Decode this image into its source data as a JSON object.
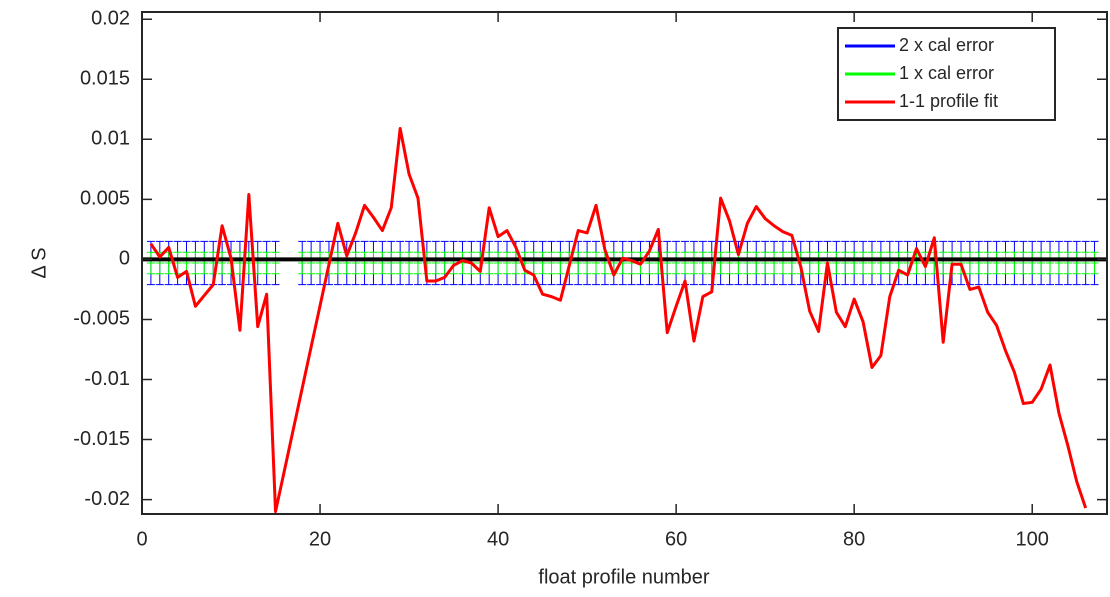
{
  "chart_data": {
    "type": "line",
    "xlabel": "float profile number",
    "ylabel": "Δ S",
    "xlim": [
      0,
      108.4
    ],
    "ylim": [
      -0.0212,
      0.0206
    ],
    "xticks": [
      0,
      20,
      40,
      60,
      80,
      100
    ],
    "yticks": [
      0.02,
      0.015,
      0.01,
      0.005,
      0,
      -0.005,
      -0.01,
      -0.015,
      -0.02
    ],
    "hline": 0,
    "hline_color": "#000000",
    "legend": "upper right",
    "series": [
      {
        "name": "2 x cal error",
        "color": "#0000ff",
        "kind": "errorbar",
        "value": -0.0003,
        "error": 0.0018,
        "x": [
          1,
          2,
          3,
          4,
          5,
          6,
          7,
          8,
          9,
          10,
          11,
          12,
          13,
          14,
          15,
          18,
          19,
          20,
          21,
          22,
          23,
          24,
          25,
          26,
          27,
          28,
          29,
          30,
          31,
          32,
          33,
          34,
          35,
          36,
          37,
          38,
          39,
          40,
          41,
          42,
          43,
          44,
          45,
          46,
          47,
          48,
          49,
          50,
          51,
          52,
          53,
          54,
          55,
          56,
          57,
          58,
          59,
          60,
          61,
          62,
          63,
          64,
          65,
          66,
          67,
          68,
          69,
          70,
          71,
          72,
          73,
          74,
          75,
          76,
          77,
          78,
          79,
          80,
          81,
          82,
          83,
          84,
          85,
          86,
          87,
          88,
          89,
          90,
          91,
          92,
          93,
          94,
          95,
          96,
          97,
          98,
          99,
          100,
          101,
          102,
          103,
          104,
          105,
          106,
          107
        ]
      },
      {
        "name": "1 x cal error",
        "color": "#00ff00",
        "kind": "errorbar",
        "value": -0.0003,
        "error": 0.0009,
        "x": [
          1,
          2,
          3,
          4,
          5,
          6,
          7,
          8,
          9,
          10,
          11,
          12,
          13,
          14,
          15,
          18,
          19,
          20,
          21,
          22,
          23,
          24,
          25,
          26,
          27,
          28,
          29,
          30,
          31,
          32,
          33,
          34,
          35,
          36,
          37,
          38,
          39,
          40,
          41,
          42,
          43,
          44,
          45,
          46,
          47,
          48,
          49,
          50,
          51,
          52,
          53,
          54,
          55,
          56,
          57,
          58,
          59,
          60,
          61,
          62,
          63,
          64,
          65,
          66,
          67,
          68,
          69,
          70,
          71,
          72,
          73,
          74,
          75,
          76,
          77,
          78,
          79,
          80,
          81,
          82,
          83,
          84,
          85,
          86,
          87,
          88,
          89,
          90,
          91,
          92,
          93,
          94,
          95,
          96,
          97,
          98,
          99,
          100,
          101,
          102,
          103,
          104,
          105,
          106,
          107
        ]
      },
      {
        "name": "1-1 profile fit",
        "color": "#ff0000",
        "kind": "line",
        "x": [
          1,
          2,
          3,
          4,
          5,
          6,
          7,
          8,
          9,
          10,
          11,
          12,
          13,
          14,
          15,
          22,
          23,
          24,
          25,
          26,
          27,
          28,
          29,
          30,
          31,
          32,
          33,
          34,
          35,
          36,
          37,
          38,
          39,
          40,
          41,
          42,
          43,
          44,
          45,
          46,
          47,
          48,
          49,
          50,
          51,
          52,
          53,
          54,
          55,
          56,
          57,
          58,
          59,
          60,
          61,
          62,
          63,
          64,
          65,
          66,
          67,
          68,
          69,
          70,
          71,
          72,
          73,
          74,
          75,
          76,
          77,
          78,
          79,
          80,
          81,
          82,
          83,
          84,
          85,
          86,
          87,
          88,
          89,
          90,
          91,
          92,
          93,
          94,
          95,
          96,
          97,
          98,
          99,
          100,
          101,
          102,
          103,
          104,
          105,
          106
        ],
        "values": [
          0.0013,
          0.0002,
          0.001,
          -0.0015,
          -0.001,
          -0.0039,
          -0.003,
          -0.0021,
          0.0028,
          0.0001,
          -0.0059,
          0.0054,
          -0.0056,
          -0.0029,
          -0.021,
          0.003,
          0.0003,
          0.0022,
          0.0045,
          0.0035,
          0.0024,
          0.0043,
          0.0109,
          0.0071,
          0.0051,
          -0.0018,
          -0.0018,
          -0.0015,
          -0.0005,
          -0.0001,
          -0.0003,
          -0.001,
          0.0043,
          0.0019,
          0.0024,
          0.001,
          -0.0009,
          -0.0013,
          -0.0029,
          -0.0031,
          -0.0034,
          -0.0005,
          0.0024,
          0.0022,
          0.0045,
          0.0008,
          -0.0013,
          0.0001,
          -0.0001,
          -0.0004,
          0.0007,
          0.0025,
          -0.0061,
          -0.0039,
          -0.0018,
          -0.0068,
          -0.0031,
          -0.0027,
          0.0051,
          0.0032,
          0.0004,
          0.003,
          0.0044,
          0.0034,
          0.0028,
          0.0023,
          0.002,
          -0.0006,
          -0.0043,
          -0.006,
          -0.0003,
          -0.0044,
          -0.0056,
          -0.0033,
          -0.0052,
          -0.009,
          -0.008,
          -0.0031,
          -0.0009,
          -0.0013,
          0.0009,
          -0.0006,
          0.0018,
          -0.0069,
          -0.0004,
          -0.0004,
          -0.0025,
          -0.0023,
          -0.0044,
          -0.0055,
          -0.0076,
          -0.0094,
          -0.012,
          -0.0119,
          -0.0108,
          -0.0088,
          -0.0128,
          -0.0155,
          -0.0185,
          -0.0207
        ]
      }
    ]
  }
}
